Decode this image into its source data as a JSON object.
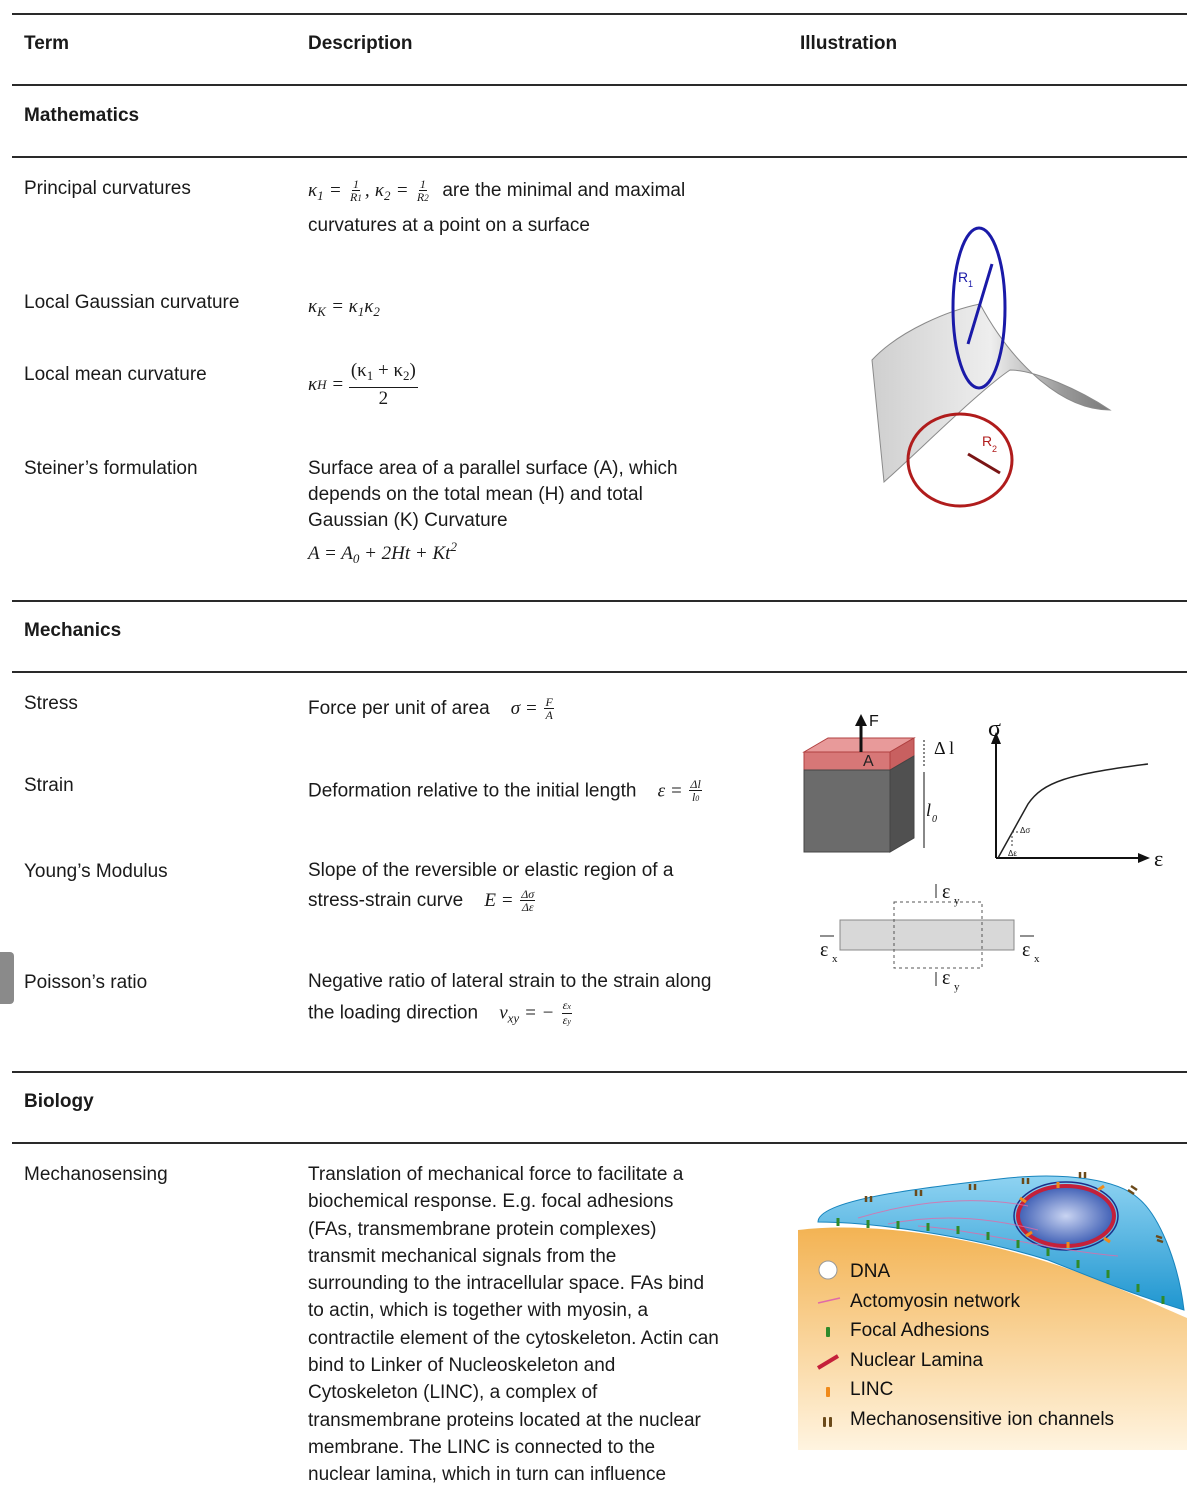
{
  "columns": [
    "Term",
    "Description",
    "Illustration"
  ],
  "sections": [
    {
      "title": "Mathematics",
      "rows": [
        {
          "term": "Principal curvatures",
          "text_after": "are the minimal and maximal",
          "text_line2": "curvatures at a point on a surface",
          "formula": {
            "k1": "κ",
            "k1_sub": "1",
            "one": "1",
            "R1": "R",
            "R1_sub": "1",
            "k2": "κ",
            "k2_sub": "2",
            "R2": "R",
            "R2_sub": "2"
          }
        },
        {
          "term": "Local Gaussian curvature",
          "formula": {
            "lhs": "κ",
            "lhs_sub": "K",
            "rhs": "κ",
            "rhs_sub1": "1",
            "rhs2": "κ",
            "rhs_sub2": "2"
          }
        },
        {
          "term": "Local mean curvature",
          "formula": {
            "lhs": "κ",
            "lhs_sub": "H",
            "numerator": "(κ",
            "n_sub1": "1",
            "plus": " + κ",
            "n_sub2": "2",
            "close": ")",
            "denominator": "2"
          }
        },
        {
          "term": "Steiner’s formulation",
          "lines": [
            "Surface area of a parallel surface (A), which",
            "depends on the total mean (H) and total",
            "Gaussian (K) Curvature"
          ],
          "formula": {
            "A": "A",
            "A0": "A",
            "A0_sub": "0",
            "rest": " + 2Ht + Kt",
            "exp": "2"
          }
        }
      ],
      "illustration": {
        "R1": "R",
        "R1_sub": "1",
        "R2": "R",
        "R2_sub": "2",
        "colors": {
          "r1": "#1a1aa8",
          "r2": "#b01c1c"
        }
      }
    },
    {
      "title": "Mechanics",
      "rows": [
        {
          "term": "Stress",
          "text": "Force per unit of area",
          "formula": {
            "lhs": "σ",
            "num": "F",
            "den": "A"
          }
        },
        {
          "term": "Strain",
          "text": "Deformation relative to the initial length",
          "formula": {
            "lhs": "ε",
            "num": "Δl",
            "den": "l",
            "den_sub": "0"
          }
        },
        {
          "term": "Young’s Modulus",
          "text1": "Slope of the reversible or elastic region of a",
          "text2": "stress-strain curve",
          "formula": {
            "lhs": "E",
            "num": "Δσ",
            "den": "Δε"
          }
        },
        {
          "term": "Poisson’s ratio",
          "text1": "Negative ratio of lateral strain to the strain along",
          "text2": "the loading direction",
          "formula": {
            "lhs": "v",
            "lhs_sub": "xy",
            "num": "ε",
            "num_sub": "x",
            "den": "ε",
            "den_sub": "y"
          }
        }
      ],
      "illustration": {
        "F": "F",
        "A": "A",
        "dl": "Δ l",
        "l0": "l",
        "l0_sub": "0",
        "sigma": "σ",
        "eps": "ε",
        "dsigma": "Δσ",
        "deps": "Δε",
        "ex": "ε",
        "ex_sub": "x",
        "ey": "ε",
        "ey_sub": "y"
      }
    },
    {
      "title": "Biology",
      "rows": [
        {
          "term": "Mechanosensing",
          "lines": [
            "Translation of mechanical force to facilitate a",
            "biochemical response. E.g. focal adhesions",
            "(FAs, transmembrane protein complexes)",
            "transmit mechanical signals from the",
            "surrounding to the intracellular space. FAs bind",
            "to actin, which is together with myosin, a",
            "contractile element of the cytoskeleton. Actin can",
            "bind to Linker of Nucleoskeleton and",
            "Cytoskeleton (LINC), a complex of",
            "transmembrane proteins located at the nuclear",
            "membrane. The LINC is connected to the",
            "nuclear lamina, which in turn can influence"
          ]
        }
      ],
      "illustration": {
        "legend": [
          "DNA",
          "Actomyosin network",
          "Focal Adhesions",
          "Nuclear Lamina",
          "LINC",
          "Mechanosensitive ion channels"
        ],
        "colors": {
          "cell": "#2aa6dc",
          "substrate": "#f0b04a",
          "focal": "#2f8a2a",
          "lamina": "#c4203a",
          "linc": "#f08a1a",
          "channel": "#6b4a1a"
        }
      }
    }
  ]
}
